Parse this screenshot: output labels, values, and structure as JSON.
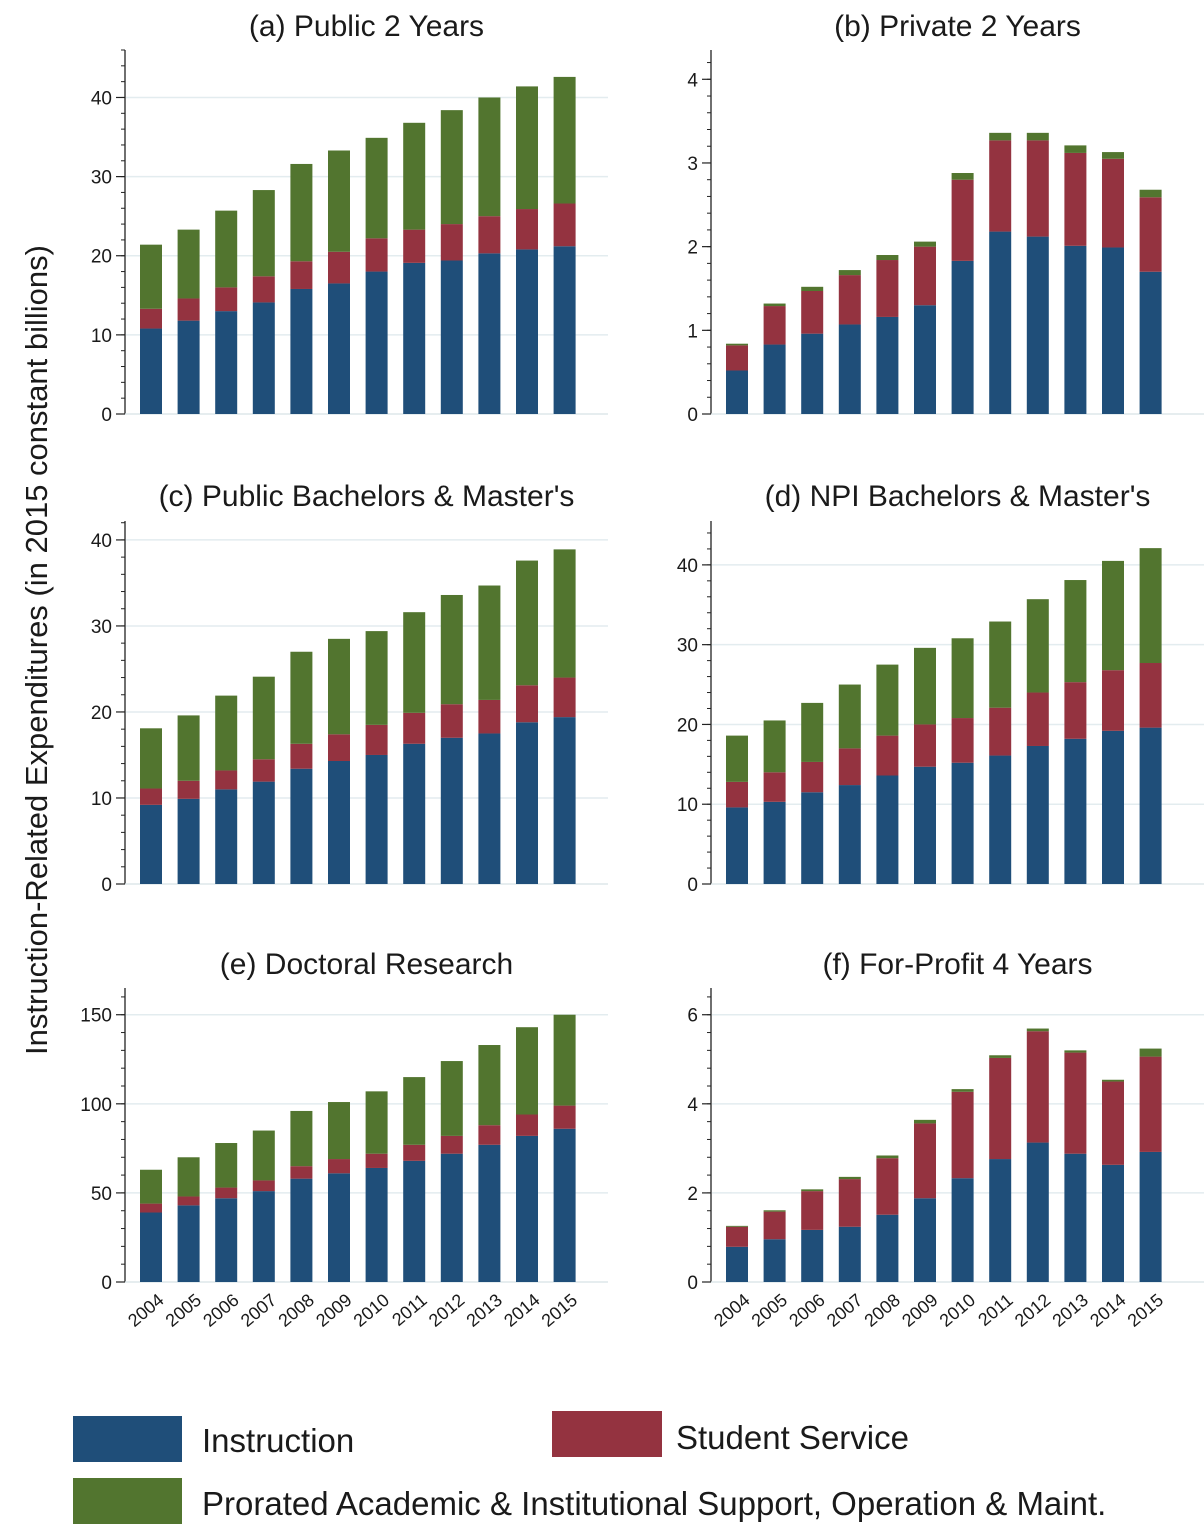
{
  "figure": {
    "y_axis_label": "Instruction-Related Expenditures (in 2015 constant billions)",
    "colors": {
      "instruction": "#1f4e79",
      "student_service": "#943340",
      "support": "#52752f",
      "axis": "#222222",
      "grid": "#e3ecef"
    }
  },
  "legend": {
    "instruction": "Instruction",
    "student_service": "Student Service",
    "support": "Prorated Academic & Institutional Support, Operation & Maint."
  },
  "chart_data": [
    {
      "type": "bar",
      "stacked": true,
      "title": "(a) Public 2 Years",
      "categories": [
        "2004",
        "2005",
        "2006",
        "2007",
        "2008",
        "2009",
        "2010",
        "2011",
        "2012",
        "2013",
        "2014",
        "2015"
      ],
      "ylim": [
        0,
        46
      ],
      "yticks": [
        0,
        10,
        20,
        30,
        40
      ],
      "grid": true,
      "series": [
        {
          "name": "Instruction",
          "values": [
            10.8,
            11.8,
            13.0,
            14.1,
            15.8,
            16.5,
            18.0,
            19.1,
            19.4,
            20.3,
            20.8,
            21.2
          ]
        },
        {
          "name": "Student Service",
          "values": [
            2.5,
            2.8,
            3.0,
            3.3,
            3.5,
            4.0,
            4.2,
            4.2,
            4.6,
            4.7,
            5.1,
            5.4
          ]
        },
        {
          "name": "Prorated Academic & Institutional Support, Operation & Maint.",
          "values": [
            8.1,
            8.7,
            9.7,
            10.9,
            12.3,
            12.8,
            12.7,
            13.5,
            14.4,
            15.0,
            15.5,
            16.0
          ]
        }
      ]
    },
    {
      "type": "bar",
      "stacked": true,
      "title": "(b) Private 2 Years",
      "categories": [
        "2004",
        "2005",
        "2006",
        "2007",
        "2008",
        "2009",
        "2010",
        "2011",
        "2012",
        "2013",
        "2014",
        "2015"
      ],
      "ylim": [
        0,
        4.35
      ],
      "yticks": [
        0,
        1,
        2,
        3,
        4
      ],
      "grid": false,
      "series": [
        {
          "name": "Instruction",
          "values": [
            0.52,
            0.83,
            0.96,
            1.07,
            1.16,
            1.3,
            1.83,
            2.18,
            2.12,
            2.01,
            1.99,
            1.7
          ]
        },
        {
          "name": "Student Service",
          "values": [
            0.3,
            0.46,
            0.51,
            0.59,
            0.68,
            0.7,
            0.97,
            1.09,
            1.15,
            1.11,
            1.06,
            0.89
          ]
        },
        {
          "name": "Prorated Academic & Institutional Support, Operation & Maint.",
          "values": [
            0.02,
            0.03,
            0.05,
            0.06,
            0.06,
            0.06,
            0.08,
            0.09,
            0.09,
            0.09,
            0.08,
            0.09
          ]
        }
      ]
    },
    {
      "type": "bar",
      "stacked": true,
      "title": "(c) Public Bachelors & Master's",
      "categories": [
        "2004",
        "2005",
        "2006",
        "2007",
        "2008",
        "2009",
        "2010",
        "2011",
        "2012",
        "2013",
        "2014",
        "2015"
      ],
      "ylim": [
        0,
        42.2
      ],
      "yticks": [
        0,
        10,
        20,
        30,
        40
      ],
      "grid": true,
      "series": [
        {
          "name": "Instruction",
          "values": [
            9.2,
            9.9,
            11.0,
            11.9,
            13.4,
            14.3,
            15.0,
            16.3,
            17.0,
            17.5,
            18.8,
            19.4
          ]
        },
        {
          "name": "Student Service",
          "values": [
            1.9,
            2.1,
            2.2,
            2.6,
            2.9,
            3.1,
            3.5,
            3.6,
            3.9,
            3.9,
            4.3,
            4.6
          ]
        },
        {
          "name": "Prorated Academic & Institutional Support, Operation & Maint.",
          "values": [
            7.0,
            7.6,
            8.7,
            9.6,
            10.7,
            11.1,
            10.9,
            11.7,
            12.7,
            13.3,
            14.5,
            14.9
          ]
        }
      ]
    },
    {
      "type": "bar",
      "stacked": true,
      "title": "(d) NPI Bachelors & Master's",
      "categories": [
        "2004",
        "2005",
        "2006",
        "2007",
        "2008",
        "2009",
        "2010",
        "2011",
        "2012",
        "2013",
        "2014",
        "2015"
      ],
      "ylim": [
        0,
        45.5
      ],
      "yticks": [
        0,
        10,
        20,
        30,
        40
      ],
      "grid": true,
      "series": [
        {
          "name": "Instruction",
          "values": [
            9.6,
            10.3,
            11.5,
            12.4,
            13.6,
            14.7,
            15.2,
            16.1,
            17.3,
            18.2,
            19.2,
            19.6
          ]
        },
        {
          "name": "Student Service",
          "values": [
            3.2,
            3.7,
            3.8,
            4.6,
            5.0,
            5.3,
            5.6,
            6.0,
            6.7,
            7.1,
            7.6,
            8.1
          ]
        },
        {
          "name": "Prorated Academic & Institutional Support, Operation & Maint.",
          "values": [
            5.8,
            6.5,
            7.4,
            8.0,
            8.9,
            9.6,
            10.0,
            10.8,
            11.7,
            12.8,
            13.7,
            14.4
          ]
        }
      ]
    },
    {
      "type": "bar",
      "stacked": true,
      "title": "(e) Doctoral Research",
      "categories": [
        "2004",
        "2005",
        "2006",
        "2007",
        "2008",
        "2009",
        "2010",
        "2011",
        "2012",
        "2013",
        "2014",
        "2015"
      ],
      "ylim": [
        0,
        165
      ],
      "yticks": [
        0,
        50,
        100,
        150
      ],
      "grid": true,
      "series": [
        {
          "name": "Instruction",
          "values": [
            39,
            43,
            47,
            51,
            58,
            61,
            64,
            68,
            72,
            77,
            82,
            86
          ]
        },
        {
          "name": "Student Service",
          "values": [
            5,
            5,
            6,
            6,
            7,
            8,
            8,
            9,
            10,
            11,
            12,
            13
          ]
        },
        {
          "name": "Prorated Academic & Institutional Support, Operation & Maint.",
          "values": [
            19,
            22,
            25,
            28,
            31,
            32,
            35,
            38,
            42,
            45,
            49,
            51
          ]
        }
      ]
    },
    {
      "type": "bar",
      "stacked": true,
      "title": "(f) For-Profit 4 Years",
      "categories": [
        "2004",
        "2005",
        "2006",
        "2007",
        "2008",
        "2009",
        "2010",
        "2011",
        "2012",
        "2013",
        "2014",
        "2015"
      ],
      "ylim": [
        0,
        6.6
      ],
      "yticks": [
        0,
        2,
        4,
        6
      ],
      "grid": true,
      "series": [
        {
          "name": "Instruction",
          "values": [
            0.79,
            0.96,
            1.17,
            1.24,
            1.51,
            1.88,
            2.33,
            2.76,
            3.13,
            2.88,
            2.63,
            2.92
          ]
        },
        {
          "name": "Student Service",
          "values": [
            0.45,
            0.62,
            0.87,
            1.07,
            1.27,
            1.68,
            1.94,
            2.27,
            2.5,
            2.27,
            1.87,
            2.14
          ]
        },
        {
          "name": "Prorated Academic & Institutional Support, Operation & Maint.",
          "values": [
            0.02,
            0.03,
            0.04,
            0.05,
            0.06,
            0.08,
            0.06,
            0.06,
            0.06,
            0.05,
            0.04,
            0.18
          ]
        }
      ]
    }
  ]
}
